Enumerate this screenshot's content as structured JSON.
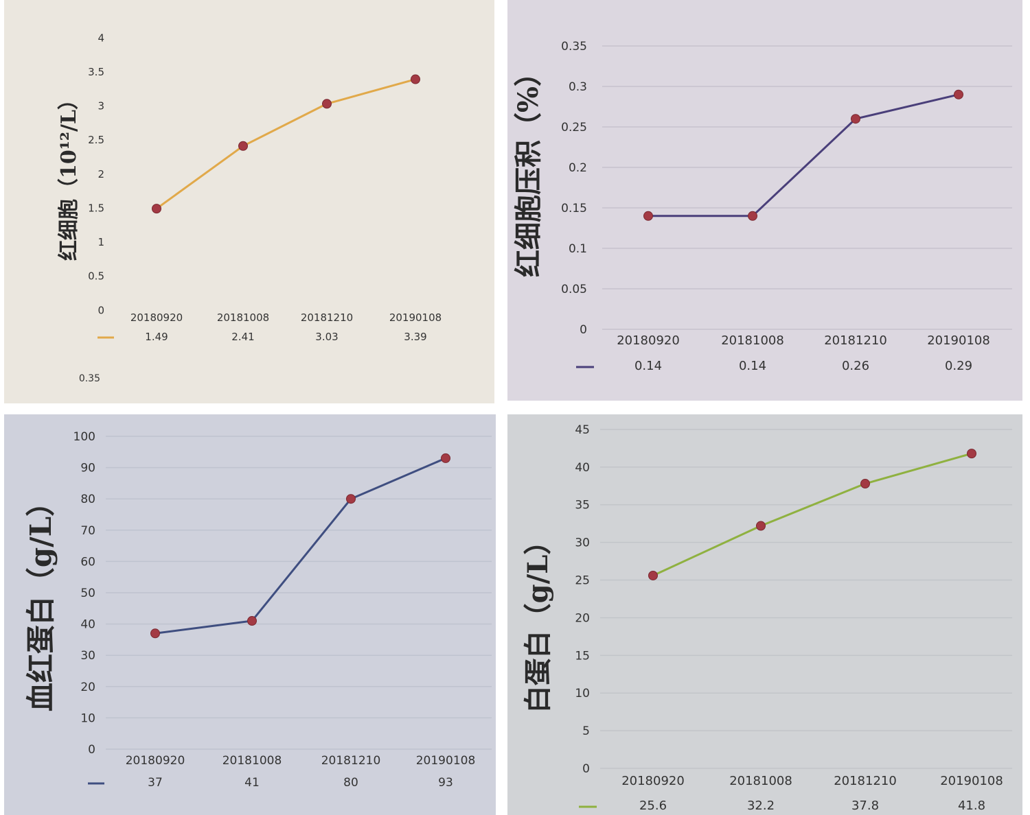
{
  "chart_data": [
    {
      "type": "line",
      "ylabel": "红细胞（10¹²/L）",
      "categories": [
        "20180920",
        "20181008",
        "20181210",
        "20190108"
      ],
      "values": [
        1.49,
        2.41,
        3.03,
        3.39
      ],
      "value_labels": [
        "1.49",
        "2.41",
        "3.03",
        "3.39"
      ],
      "ylim": [
        0,
        4
      ],
      "yticks": [
        "0",
        "0.5",
        "1",
        "1.5",
        "2",
        "2.5",
        "3",
        "3.5",
        "4"
      ],
      "extra_text": "0.35",
      "line_color": "#e1a94a",
      "marker_color": "#a33a44",
      "legend_position": "below"
    },
    {
      "type": "line",
      "ylabel": "红细胞压积（%）",
      "categories": [
        "20180920",
        "20181008",
        "20181210",
        "20190108"
      ],
      "values": [
        0.14,
        0.14,
        0.26,
        0.29
      ],
      "value_labels": [
        "0.14",
        "0.14",
        "0.26",
        "0.29"
      ],
      "ylim": [
        0,
        0.35
      ],
      "yticks": [
        "0",
        "0.05",
        "0.1",
        "0.15",
        "0.2",
        "0.25",
        "0.3",
        "0.35"
      ],
      "line_color": "#4a3f7a",
      "marker_color": "#a33a44",
      "legend_position": "below"
    },
    {
      "type": "line",
      "ylabel": "血红蛋白（g/L）",
      "categories": [
        "20180920",
        "20181008",
        "20181210",
        "20190108"
      ],
      "values": [
        37,
        41,
        80,
        93
      ],
      "value_labels": [
        "37",
        "41",
        "80",
        "93"
      ],
      "ylim": [
        0,
        100
      ],
      "yticks": [
        "0",
        "10",
        "20",
        "30",
        "40",
        "50",
        "60",
        "70",
        "80",
        "90",
        "100"
      ],
      "line_color": "#3f4e80",
      "marker_color": "#a33a44",
      "legend_position": "below"
    },
    {
      "type": "line",
      "ylabel": "白蛋白（g/L）",
      "categories": [
        "20180920",
        "20181008",
        "20181210",
        "20190108"
      ],
      "values": [
        25.6,
        32.2,
        37.8,
        41.8
      ],
      "value_labels": [
        "25.6",
        "32.2",
        "37.8",
        "41.8"
      ],
      "ylim": [
        0,
        45
      ],
      "yticks": [
        "0",
        "5",
        "10",
        "15",
        "20",
        "25",
        "30",
        "35",
        "40",
        "45"
      ],
      "line_color": "#8fb140",
      "marker_color": "#a33a44",
      "legend_position": "below"
    }
  ]
}
